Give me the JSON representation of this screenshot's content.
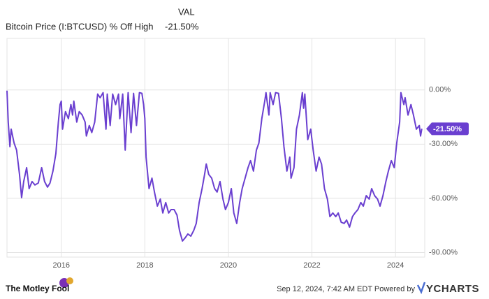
{
  "chart_data": {
    "type": "line",
    "legend_header": "VAL",
    "xlim": [
      2014.7,
      2024.7
    ],
    "xticks": [
      2016,
      2018,
      2020,
      2022,
      2024
    ],
    "ylim": [
      -92.5,
      28.5
    ],
    "yticks": [
      {
        "value": 0,
        "label": "0.00%"
      },
      {
        "value": -30,
        "label": "-30.00%"
      },
      {
        "value": -60,
        "label": "-60.00%"
      },
      {
        "value": -90,
        "label": "-90.00%"
      }
    ],
    "grid": true,
    "x": [
      2014.7,
      2014.73,
      2014.77,
      2014.8,
      2014.87,
      2014.93,
      2015.0,
      2015.05,
      2015.1,
      2015.17,
      2015.23,
      2015.3,
      2015.37,
      2015.45,
      2015.53,
      2015.6,
      2015.67,
      2015.73,
      2015.8,
      2015.87,
      2015.93,
      2015.97,
      2016.0,
      2016.03,
      2016.1,
      2016.17,
      2016.23,
      2016.27,
      2016.3,
      2016.37,
      2016.43,
      2016.5,
      2016.57,
      2016.6,
      2016.67,
      2016.73,
      2016.8,
      2016.87,
      2016.93,
      2017.0,
      2017.07,
      2017.1,
      2017.17,
      2017.23,
      2017.3,
      2017.37,
      2017.4,
      2017.47,
      2017.53,
      2017.6,
      2017.67,
      2017.73,
      2017.8,
      2017.87,
      2017.93,
      2017.97,
      2018.0,
      2018.03,
      2018.1,
      2018.17,
      2018.23,
      2018.3,
      2018.37,
      2018.43,
      2018.5,
      2018.57,
      2018.63,
      2018.7,
      2018.77,
      2018.83,
      2018.9,
      2018.97,
      2019.03,
      2019.1,
      2019.17,
      2019.23,
      2019.3,
      2019.37,
      2019.43,
      2019.47,
      2019.53,
      2019.6,
      2019.67,
      2019.73,
      2019.8,
      2019.87,
      2019.93,
      2020.0,
      2020.07,
      2020.13,
      2020.2,
      2020.27,
      2020.33,
      2020.4,
      2020.47,
      2020.53,
      2020.6,
      2020.67,
      2020.73,
      2020.8,
      2020.87,
      2020.9,
      2020.97,
      2021.0,
      2021.07,
      2021.13,
      2021.2,
      2021.27,
      2021.33,
      2021.4,
      2021.47,
      2021.5,
      2021.57,
      2021.63,
      2021.7,
      2021.77,
      2021.8,
      2021.83,
      2021.9,
      2021.97,
      2022.03,
      2022.1,
      2022.17,
      2022.23,
      2022.3,
      2022.37,
      2022.43,
      2022.5,
      2022.57,
      2022.63,
      2022.7,
      2022.77,
      2022.83,
      2022.9,
      2022.97,
      2023.03,
      2023.1,
      2023.17,
      2023.23,
      2023.3,
      2023.37,
      2023.43,
      2023.5,
      2023.57,
      2023.63,
      2023.7,
      2023.77,
      2023.83,
      2023.9,
      2023.97,
      2024.03,
      2024.1,
      2024.13,
      2024.2,
      2024.23,
      2024.3,
      2024.37,
      2024.43,
      2024.5,
      2024.57,
      2024.6,
      2024.63
    ],
    "series": [
      {
        "name": "Bitcoin Price (I:BTCUSD) % Off High",
        "color": "#6a3fd0",
        "values": [
          -0.4,
          -17.8,
          -31.4,
          -21.7,
          -29.4,
          -33.3,
          -46.8,
          -59.6,
          -50.7,
          -43.0,
          -54.6,
          -50.7,
          -52.6,
          -51.5,
          -43.0,
          -50.7,
          -53.8,
          -51.5,
          -44.9,
          -35.2,
          -17.8,
          -8.1,
          -6.2,
          -21.7,
          -12.0,
          -15.9,
          -8.1,
          -13.9,
          -6.2,
          -17.8,
          -12.0,
          -13.9,
          -17.8,
          -25.5,
          -19.7,
          -23.6,
          -17.8,
          -2.3,
          -4.3,
          -1.5,
          -21.7,
          -2.3,
          -19.7,
          -2.3,
          -8.1,
          -2.3,
          -15.9,
          -2.3,
          -33.3,
          -1.5,
          -23.6,
          -1.9,
          -19.7,
          -1.5,
          -1.9,
          -8.1,
          -15.9,
          -37.2,
          -54.6,
          -48.8,
          -56.5,
          -64.3,
          -60.4,
          -68.1,
          -62.3,
          -68.1,
          -66.2,
          -66.2,
          -69.3,
          -77.8,
          -83.6,
          -81.7,
          -79.7,
          -80.9,
          -77.8,
          -73.9,
          -62.3,
          -54.6,
          -46.8,
          -41.0,
          -46.8,
          -48.8,
          -54.6,
          -56.5,
          -50.7,
          -60.4,
          -66.2,
          -62.3,
          -54.6,
          -68.1,
          -73.9,
          -62.3,
          -54.6,
          -48.8,
          -43.0,
          -39.1,
          -44.9,
          -33.3,
          -29.4,
          -15.9,
          -6.2,
          -1.5,
          -13.9,
          -1.5,
          -8.1,
          -1.5,
          -1.9,
          -15.9,
          -31.4,
          -44.9,
          -37.2,
          -48.8,
          -43.0,
          -21.7,
          -13.9,
          -1.5,
          -10.1,
          -2.3,
          -27.5,
          -21.7,
          -33.3,
          -44.9,
          -37.2,
          -41.0,
          -54.6,
          -60.4,
          -70.1,
          -68.1,
          -70.1,
          -68.1,
          -73.2,
          -73.9,
          -72.0,
          -75.9,
          -70.1,
          -68.1,
          -66.2,
          -62.3,
          -64.3,
          -58.5,
          -60.4,
          -54.6,
          -58.5,
          -60.4,
          -64.3,
          -58.5,
          -50.7,
          -44.9,
          -39.1,
          -43.0,
          -29.4,
          -17.8,
          -1.5,
          -8.1,
          -4.3,
          -13.9,
          -8.1,
          -13.9,
          -21.7,
          -19.7,
          -25.5,
          -21.5
        ],
        "value_labels": [
          null,
          null,
          null,
          null,
          null,
          null,
          null,
          null,
          null,
          null,
          null,
          null,
          null,
          null,
          null,
          null,
          null,
          null,
          null,
          null,
          null,
          null,
          null,
          null,
          null,
          null,
          null,
          null,
          null,
          null,
          null,
          null,
          null,
          null,
          null,
          null,
          null,
          null,
          null,
          null,
          null,
          null,
          null,
          null,
          null,
          null,
          null,
          null,
          null,
          null,
          null,
          null,
          null,
          null,
          null,
          null,
          null,
          null,
          null,
          null,
          null,
          null,
          null,
          null,
          null,
          null,
          null,
          null,
          null,
          null,
          null,
          null,
          null,
          null,
          null,
          null,
          null,
          null,
          null,
          null,
          null,
          null,
          null,
          null,
          null,
          null,
          null,
          null,
          null,
          null,
          null,
          null,
          null,
          null,
          null,
          null,
          null,
          null,
          null,
          null,
          null,
          null,
          null,
          null,
          null,
          null,
          null,
          null,
          null,
          null,
          null,
          null,
          null,
          null,
          null,
          null,
          null,
          null,
          null,
          null,
          null,
          null,
          null,
          null,
          null,
          null,
          null,
          null,
          null,
          null,
          null,
          null,
          null,
          null,
          null,
          null,
          null,
          null,
          null,
          null,
          null,
          null,
          null,
          null,
          null,
          null,
          null,
          null,
          null,
          null,
          null,
          null,
          null,
          null,
          null,
          null,
          null,
          null,
          null,
          null,
          null,
          "-21.50%"
        ]
      }
    ]
  },
  "footer": {
    "brand": "The Motley Fool",
    "timestamp": "Sep 12, 2024, 7:42 AM EDT Powered by",
    "provider": "YCHARTS"
  }
}
